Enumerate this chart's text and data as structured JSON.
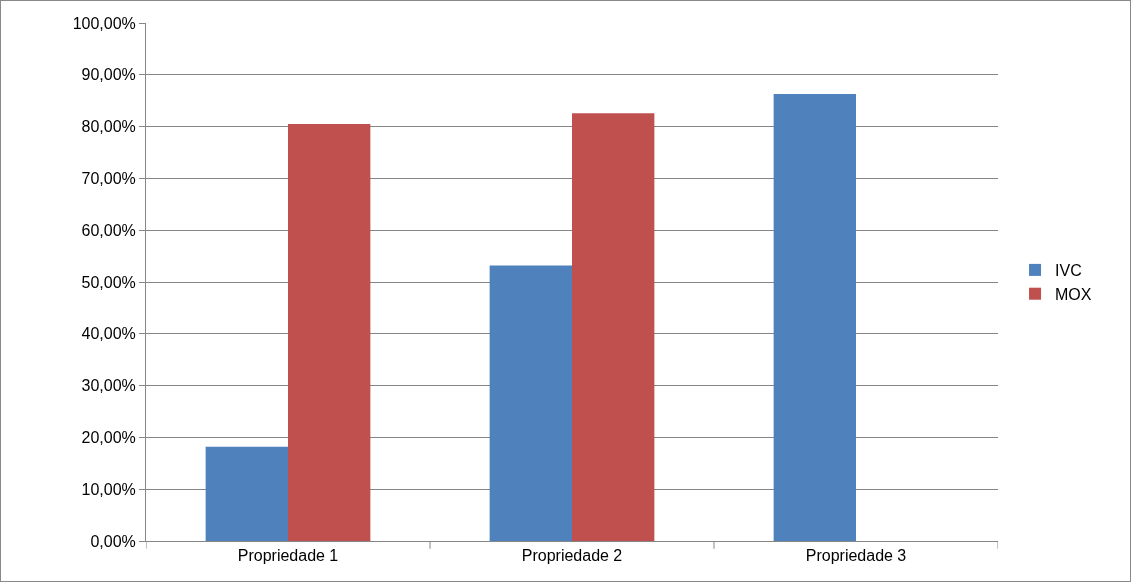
{
  "chart_data": {
    "type": "bar",
    "categories": [
      "Propriedade 1",
      "Propriedade 2",
      "Propriedade 3"
    ],
    "series": [
      {
        "name": "IVC",
        "color": "#4f81bd",
        "values": [
          18.2,
          53.2,
          86.3
        ]
      },
      {
        "name": "MOX",
        "color": "#c0504d",
        "values": [
          80.5,
          82.6,
          null
        ]
      }
    ],
    "ylim": [
      0,
      100
    ],
    "yticks": [
      {
        "value": 0,
        "label": "0,00%"
      },
      {
        "value": 10,
        "label": "10,00%"
      },
      {
        "value": 20,
        "label": "20,00%"
      },
      {
        "value": 30,
        "label": "30,00%"
      },
      {
        "value": 40,
        "label": "40,00%"
      },
      {
        "value": 50,
        "label": "50,00%"
      },
      {
        "value": 60,
        "label": "60,00%"
      },
      {
        "value": 70,
        "label": "70,00%"
      },
      {
        "value": 80,
        "label": "80,00%"
      },
      {
        "value": 90,
        "label": "90,00%"
      },
      {
        "value": 100,
        "label": "100,00%"
      }
    ],
    "grid": "y",
    "legend": "right"
  }
}
